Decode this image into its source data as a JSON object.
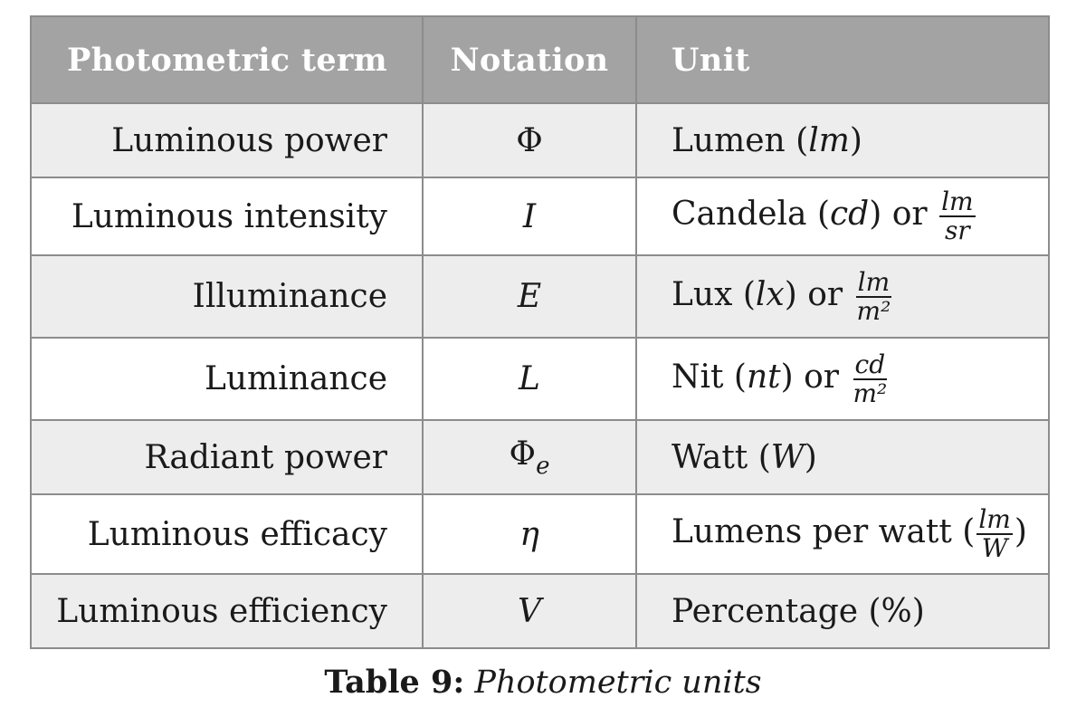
{
  "table": {
    "headers": {
      "term": "Photometric term",
      "notation": "Notation",
      "unit": "Unit"
    },
    "rows": [
      {
        "term": "Luminous power",
        "notation": "Φ",
        "unit_text": "Lumen (",
        "unit_symbol": "lm",
        "unit_close": ")"
      },
      {
        "term": "Luminous intensity",
        "notation": "I",
        "unit_text": "Candela (",
        "unit_symbol": "cd",
        "unit_close": ") or",
        "fraction": {
          "num": "lm",
          "den": "sr"
        }
      },
      {
        "term": "Illuminance",
        "notation": "E",
        "unit_text": "Lux (",
        "unit_symbol": "lx",
        "unit_close": ") or",
        "fraction": {
          "num": "lm",
          "den": "m²"
        }
      },
      {
        "term": "Luminance",
        "notation": "L",
        "unit_text": "Nit (",
        "unit_symbol": "nt",
        "unit_close": ") or",
        "fraction": {
          "num": "cd",
          "den": "m²"
        }
      },
      {
        "term": "Radiant power",
        "notation": "Φ",
        "notation_sub": "e",
        "unit_text": "Watt (",
        "unit_symbol": "W",
        "unit_close": ")"
      },
      {
        "term": "Luminous efficacy",
        "notation": "η",
        "unit_text": "Lumens per watt (",
        "fraction": {
          "num": "lm",
          "den": "W"
        },
        "unit_close_after": ")"
      },
      {
        "term": "Luminous efficiency",
        "notation": "V",
        "unit_text": "Percentage (%)"
      }
    ]
  },
  "caption": {
    "label": "Table 9:",
    "text": "Photometric units"
  }
}
